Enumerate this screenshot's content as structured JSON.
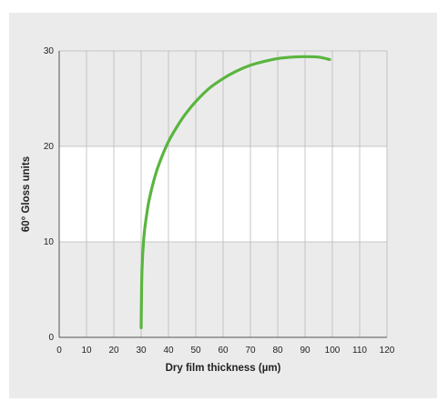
{
  "chart_data": {
    "type": "line",
    "title": "",
    "xlabel": "Dry film thickness (µm)",
    "ylabel": "60° Gloss units",
    "xlim": [
      0,
      120
    ],
    "ylim": [
      0,
      30
    ],
    "x_ticks": [
      0,
      10,
      20,
      30,
      40,
      50,
      60,
      70,
      80,
      90,
      100,
      110,
      120
    ],
    "y_ticks": [
      0,
      10,
      20,
      30
    ],
    "grid": true,
    "legend": "none",
    "band_colors": [
      "#ebebec",
      "#ffffff",
      "#ebebec"
    ],
    "series": [
      {
        "color": "#5ab53f",
        "x": [
          30,
          30.3,
          31,
          32,
          33,
          35,
          37,
          40,
          43,
          46,
          50,
          55,
          60,
          65,
          70,
          75,
          80,
          85,
          90,
          95,
          99
        ],
        "y": [
          1,
          7,
          10.5,
          12.8,
          14.5,
          16.8,
          18.5,
          20.5,
          22,
          23.3,
          24.7,
          26.1,
          27.1,
          27.9,
          28.5,
          28.9,
          29.2,
          29.35,
          29.4,
          29.35,
          29.1
        ]
      }
    ]
  }
}
